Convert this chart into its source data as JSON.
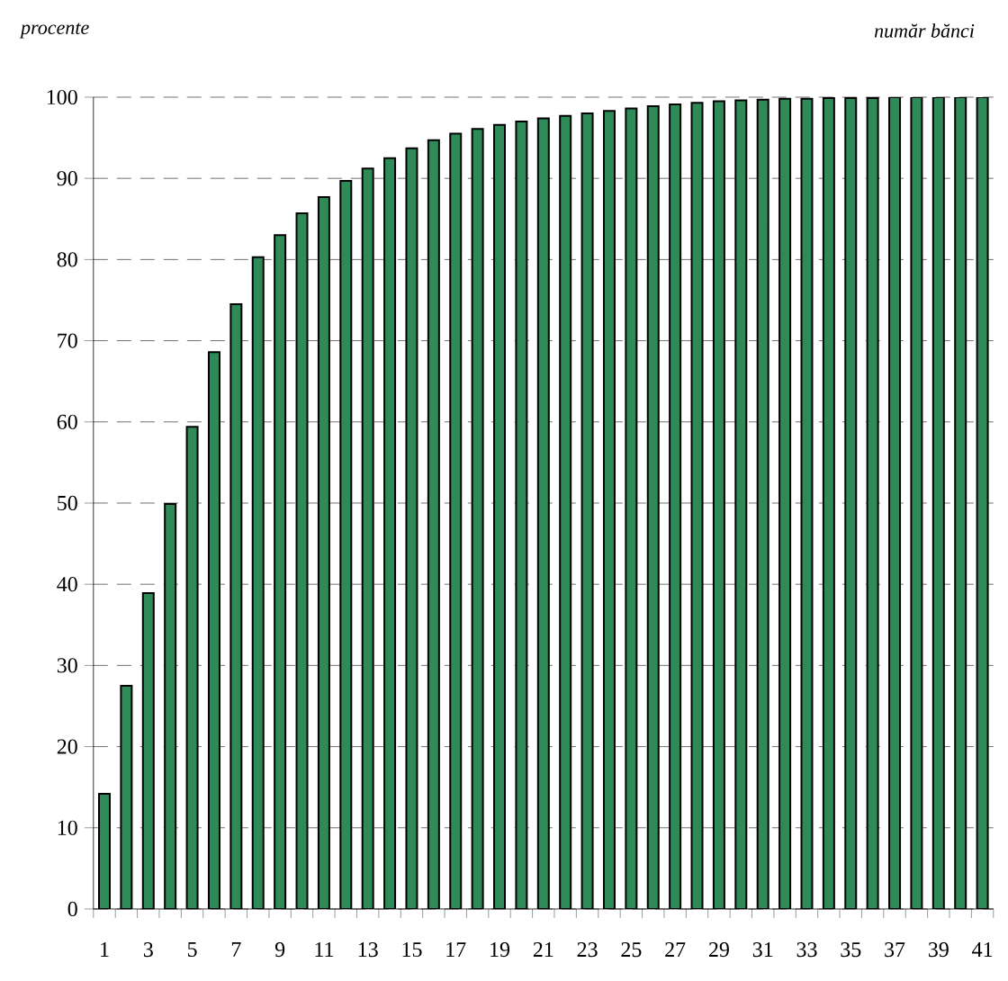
{
  "chart_data": {
    "type": "bar",
    "ylabel": "procente",
    "xlabel": "număr bănci",
    "categories": [
      "1",
      null,
      "3",
      null,
      "5",
      null,
      "7",
      null,
      "9",
      null,
      "11",
      null,
      "13",
      null,
      "15",
      null,
      "17",
      null,
      "19",
      null,
      "21",
      null,
      "23",
      null,
      "25",
      null,
      "27",
      null,
      "29",
      null,
      "31",
      null,
      "33",
      null,
      "35",
      null,
      "37",
      null,
      "39",
      null,
      "41"
    ],
    "values": [
      14.2,
      27.5,
      38.9,
      49.9,
      59.4,
      68.6,
      74.5,
      80.3,
      83.0,
      85.7,
      87.7,
      89.7,
      91.2,
      92.5,
      93.7,
      94.7,
      95.5,
      96.1,
      96.6,
      97.0,
      97.4,
      97.7,
      98.0,
      98.3,
      98.6,
      98.9,
      99.1,
      99.3,
      99.5,
      99.6,
      99.7,
      99.8,
      99.8,
      99.9,
      99.9,
      99.9,
      100,
      100,
      100,
      100,
      100
    ],
    "color": "#2e8b57",
    "ylim": [
      0,
      100
    ],
    "yticks": [
      0,
      10,
      20,
      30,
      40,
      50,
      60,
      70,
      80,
      90,
      100
    ],
    "grid": "y"
  }
}
